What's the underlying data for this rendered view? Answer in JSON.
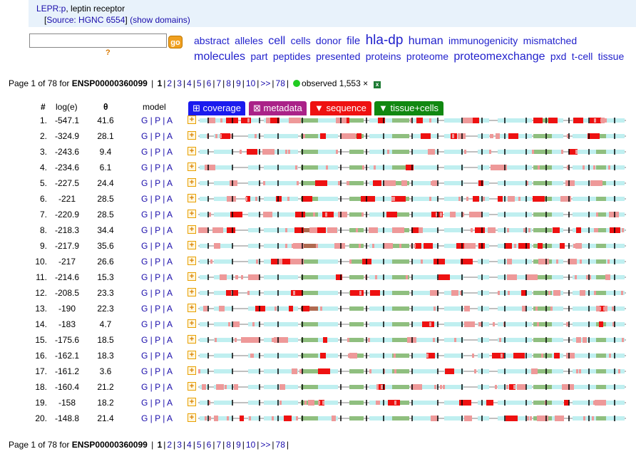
{
  "header": {
    "protein_id": "LEPR:p",
    "protein_desc": ", leptin receptor",
    "source_label": "Source: HGNC 6554",
    "show_domains": "(show domains)"
  },
  "search": {
    "value": "",
    "placeholder": "",
    "go_label": "go",
    "help_label": "?"
  },
  "tag_cloud": [
    {
      "text": "abstract",
      "size": 14
    },
    {
      "text": "alleles",
      "size": 14
    },
    {
      "text": "cell",
      "size": 16
    },
    {
      "text": "cells",
      "size": 14
    },
    {
      "text": "donor",
      "size": 14
    },
    {
      "text": "file",
      "size": 15
    },
    {
      "text": "hla-dp",
      "size": 19
    },
    {
      "text": "human",
      "size": 16
    },
    {
      "text": "immunogenicity",
      "size": 14
    },
    {
      "text": "mismatched",
      "size": 14
    },
    {
      "text": "molecules",
      "size": 16
    },
    {
      "text": "part",
      "size": 14
    },
    {
      "text": "peptides",
      "size": 14
    },
    {
      "text": "presented",
      "size": 14
    },
    {
      "text": "proteins",
      "size": 14
    },
    {
      "text": "proteome",
      "size": 14
    },
    {
      "text": "proteomexchange",
      "size": 16
    },
    {
      "text": "pxd",
      "size": 14
    },
    {
      "text": "t-cell",
      "size": 14
    },
    {
      "text": "tissue",
      "size": 14
    }
  ],
  "pager": {
    "prefix": "Page 1 of 78 for ",
    "accession": "ENSP00000360099",
    "current": "1",
    "pages": [
      "2",
      "3",
      "4",
      "5",
      "6",
      "7",
      "8",
      "9",
      "10",
      ">>",
      "78"
    ],
    "observed_label": "observed 1,553",
    "observed_close": "×"
  },
  "columns": {
    "rank": "#",
    "log": "log(e)",
    "theta": "θ",
    "model": "model"
  },
  "tabs": [
    {
      "label": "⊞ coverage",
      "color": "#1a1aee"
    },
    {
      "label": "⊠ metadata",
      "color": "#aa2288"
    },
    {
      "label": "▼ sequence",
      "color": "#ee1111"
    },
    {
      "label": "▼ tissue+cells",
      "color": "#118811"
    }
  ],
  "model_links": "G | P | A",
  "expand_label": "+",
  "colors": {
    "coverage_cyan": "#bfeff0",
    "domain_green": "#8fbf7f",
    "domain_brown": "#b06a50",
    "peptide_red": "#ee1111",
    "peptide_pink": "#ee9999",
    "tick": "#000000",
    "baseline": "#808080"
  },
  "rows": [
    {
      "rank": "1.",
      "log": "-547.1",
      "theta": "41.6"
    },
    {
      "rank": "2.",
      "log": "-324.9",
      "theta": "28.1"
    },
    {
      "rank": "3.",
      "log": "-243.6",
      "theta": "9.4"
    },
    {
      "rank": "4.",
      "log": "-234.6",
      "theta": "6.1"
    },
    {
      "rank": "5.",
      "log": "-227.5",
      "theta": "24.4"
    },
    {
      "rank": "6.",
      "log": "-221",
      "theta": "28.5"
    },
    {
      "rank": "7.",
      "log": "-220.9",
      "theta": "28.5"
    },
    {
      "rank": "8.",
      "log": "-218.3",
      "theta": "34.4"
    },
    {
      "rank": "9.",
      "log": "-217.9",
      "theta": "35.6"
    },
    {
      "rank": "10.",
      "log": "-217",
      "theta": "26.6"
    },
    {
      "rank": "11.",
      "log": "-214.6",
      "theta": "15.3"
    },
    {
      "rank": "12.",
      "log": "-208.5",
      "theta": "23.3"
    },
    {
      "rank": "13.",
      "log": "-190",
      "theta": "22.3"
    },
    {
      "rank": "14.",
      "log": "-183",
      "theta": "4.7"
    },
    {
      "rank": "15.",
      "log": "-175.6",
      "theta": "18.5"
    },
    {
      "rank": "16.",
      "log": "-162.1",
      "theta": "18.3"
    },
    {
      "rank": "17.",
      "log": "-161.2",
      "theta": "3.6"
    },
    {
      "rank": "18.",
      "log": "-160.4",
      "theta": "21.2"
    },
    {
      "rank": "19.",
      "log": "-158",
      "theta": "18.2"
    },
    {
      "rank": "20.",
      "log": "-148.8",
      "theta": "21.4"
    }
  ]
}
